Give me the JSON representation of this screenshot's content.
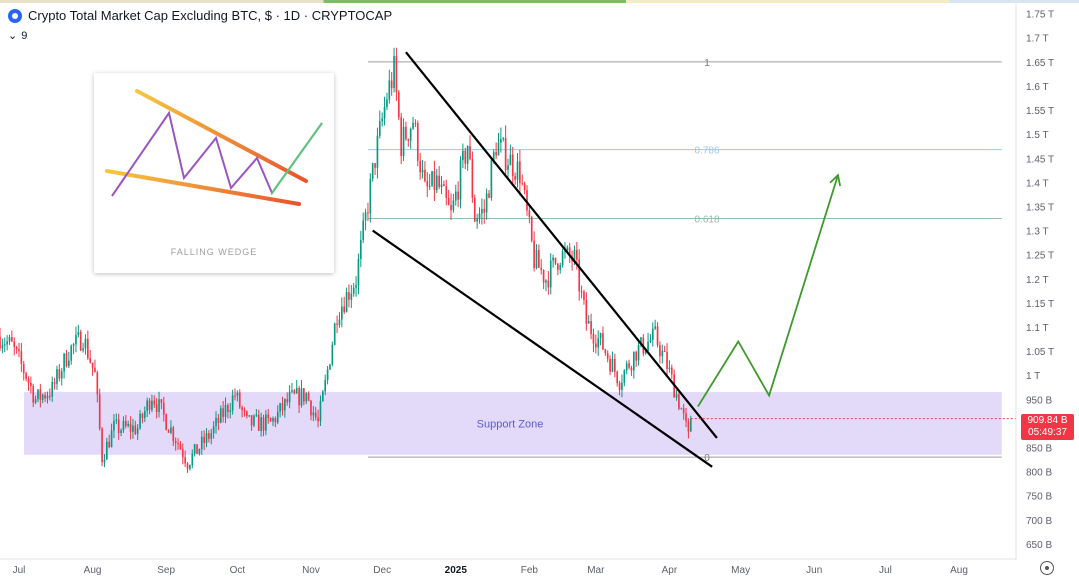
{
  "header": {
    "title": "Crypto Total Market Cap Excluding BTC, $ · 1D · CRYPTOCAP",
    "indicator_chevron": "⌄",
    "indicator_count": "9"
  },
  "inset": {
    "caption": "FALLING WEDGE"
  },
  "price_label": {
    "price": "909.84 B",
    "countdown": "05:49:37"
  },
  "colors": {
    "up": "#089981",
    "down": "#f23645",
    "support_zone": "#d9ccf7",
    "wedge": "#000000",
    "projection": "#3f9a2c",
    "price_tag": "#f23645"
  },
  "chart_data": {
    "type": "candlestick",
    "title": "Crypto Total Market Cap Excluding BTC, $ · 1D · CRYPTOCAP",
    "unit": "$",
    "y_range": [
      625000000000,
      1770000000000
    ],
    "x_range": [
      "2024-06-23",
      "2025-08-25"
    ],
    "x_ticks": [
      {
        "date": "2024-07-01",
        "label": "Jul"
      },
      {
        "date": "2024-08-01",
        "label": "Aug"
      },
      {
        "date": "2024-09-01",
        "label": "Sep"
      },
      {
        "date": "2024-10-01",
        "label": "Oct"
      },
      {
        "date": "2024-11-01",
        "label": "Nov"
      },
      {
        "date": "2024-12-01",
        "label": "Dec"
      },
      {
        "date": "2025-01-01",
        "label": "2025"
      },
      {
        "date": "2025-02-01",
        "label": "Feb"
      },
      {
        "date": "2025-03-01",
        "label": "Mar"
      },
      {
        "date": "2025-04-01",
        "label": "Apr"
      },
      {
        "date": "2025-05-01",
        "label": "May"
      },
      {
        "date": "2025-06-01",
        "label": "Jun"
      },
      {
        "date": "2025-07-01",
        "label": "Jul"
      },
      {
        "date": "2025-08-01",
        "label": "Aug"
      }
    ],
    "y_ticks": [
      {
        "value": 650000000000,
        "label": "650 B"
      },
      {
        "value": 700000000000,
        "label": "700 B"
      },
      {
        "value": 750000000000,
        "label": "750 B"
      },
      {
        "value": 800000000000,
        "label": "800 B"
      },
      {
        "value": 850000000000,
        "label": "850 B"
      },
      {
        "value": 950000000000,
        "label": "950 B"
      },
      {
        "value": 1000000000000,
        "label": "1 T"
      },
      {
        "value": 1050000000000,
        "label": "1.05 T"
      },
      {
        "value": 1100000000000,
        "label": "1.1 T"
      },
      {
        "value": 1150000000000,
        "label": "1.15 T"
      },
      {
        "value": 1200000000000,
        "label": "1.2 T"
      },
      {
        "value": 1250000000000,
        "label": "1.25 T"
      },
      {
        "value": 1300000000000,
        "label": "1.3 T"
      },
      {
        "value": 1350000000000,
        "label": "1.35 T"
      },
      {
        "value": 1400000000000,
        "label": "1.4 T"
      },
      {
        "value": 1450000000000,
        "label": "1.45 T"
      },
      {
        "value": 1500000000000,
        "label": "1.5 T"
      },
      {
        "value": 1550000000000,
        "label": "1.55 T"
      },
      {
        "value": 1600000000000,
        "label": "1.6 T"
      },
      {
        "value": 1650000000000,
        "label": "1.65 T"
      },
      {
        "value": 1700000000000,
        "label": "1.7 T"
      },
      {
        "value": 1750000000000,
        "label": "1.75 T"
      }
    ],
    "closes": [
      {
        "date": "2024-06-23",
        "value": 1080000000000
      },
      {
        "date": "2024-06-28",
        "value": 1060000000000
      },
      {
        "date": "2024-07-04",
        "value": 1000000000000
      },
      {
        "date": "2024-07-08",
        "value": 950000000000
      },
      {
        "date": "2024-07-15",
        "value": 970000000000
      },
      {
        "date": "2024-07-22",
        "value": 1050000000000
      },
      {
        "date": "2024-07-28",
        "value": 1080000000000
      },
      {
        "date": "2024-08-02",
        "value": 1000000000000
      },
      {
        "date": "2024-08-05",
        "value": 830000000000
      },
      {
        "date": "2024-08-10",
        "value": 890000000000
      },
      {
        "date": "2024-08-20",
        "value": 890000000000
      },
      {
        "date": "2024-08-26",
        "value": 960000000000
      },
      {
        "date": "2024-09-06",
        "value": 860000000000
      },
      {
        "date": "2024-09-10",
        "value": 820000000000
      },
      {
        "date": "2024-09-20",
        "value": 880000000000
      },
      {
        "date": "2024-09-30",
        "value": 960000000000
      },
      {
        "date": "2024-10-05",
        "value": 900000000000
      },
      {
        "date": "2024-10-15",
        "value": 900000000000
      },
      {
        "date": "2024-10-23",
        "value": 950000000000
      },
      {
        "date": "2024-10-30",
        "value": 960000000000
      },
      {
        "date": "2024-11-04",
        "value": 900000000000
      },
      {
        "date": "2024-11-07",
        "value": 980000000000
      },
      {
        "date": "2024-11-12",
        "value": 1130000000000
      },
      {
        "date": "2024-11-20",
        "value": 1200000000000
      },
      {
        "date": "2024-11-28",
        "value": 1450000000000
      },
      {
        "date": "2024-12-03",
        "value": 1580000000000
      },
      {
        "date": "2024-12-06",
        "value": 1630000000000
      },
      {
        "date": "2024-12-09",
        "value": 1480000000000
      },
      {
        "date": "2024-12-14",
        "value": 1530000000000
      },
      {
        "date": "2024-12-19",
        "value": 1380000000000
      },
      {
        "date": "2024-12-24",
        "value": 1400000000000
      },
      {
        "date": "2024-12-30",
        "value": 1330000000000
      },
      {
        "date": "2025-01-06",
        "value": 1480000000000
      },
      {
        "date": "2025-01-09",
        "value": 1330000000000
      },
      {
        "date": "2025-01-13",
        "value": 1340000000000
      },
      {
        "date": "2025-01-18",
        "value": 1480000000000
      },
      {
        "date": "2025-01-23",
        "value": 1450000000000
      },
      {
        "date": "2025-01-28",
        "value": 1420000000000
      },
      {
        "date": "2025-02-03",
        "value": 1240000000000
      },
      {
        "date": "2025-02-08",
        "value": 1200000000000
      },
      {
        "date": "2025-02-14",
        "value": 1250000000000
      },
      {
        "date": "2025-02-20",
        "value": 1240000000000
      },
      {
        "date": "2025-02-25",
        "value": 1110000000000
      },
      {
        "date": "2025-03-04",
        "value": 1060000000000
      },
      {
        "date": "2025-03-11",
        "value": 990000000000
      },
      {
        "date": "2025-03-18",
        "value": 1050000000000
      },
      {
        "date": "2025-03-26",
        "value": 1080000000000
      },
      {
        "date": "2025-03-31",
        "value": 1020000000000
      },
      {
        "date": "2025-04-06",
        "value": 930000000000
      },
      {
        "date": "2025-04-09",
        "value": 870000000000
      },
      {
        "date": "2025-04-10",
        "value": 909840000000
      }
    ],
    "horizontal_levels": [
      {
        "label": "1",
        "value": 1650000000000,
        "color": "#9e9e9e",
        "from": "2024-11-25",
        "to": "2025-08-19"
      },
      {
        "label": "0.786",
        "value": 1468000000000,
        "color": "#9cc7e6",
        "from": "2024-11-25",
        "to": "2025-08-19"
      },
      {
        "label": "0.618",
        "value": 1325000000000,
        "color": "#8fbfae",
        "from": "2024-11-25",
        "to": "2025-08-19"
      },
      {
        "label": "0",
        "value": 830000000000,
        "color": "#9e9e9e",
        "from": "2024-11-25",
        "to": "2025-08-19"
      }
    ],
    "support_zone": {
      "label": "Support Zone",
      "low": 835000000000,
      "high": 965000000000,
      "from": "2024-06-23",
      "to": "2025-08-19"
    },
    "wedge_lines": [
      {
        "name": "upper",
        "points": [
          {
            "date": "2024-12-11",
            "value": 1670000000000
          },
          {
            "date": "2025-04-21",
            "value": 870000000000
          }
        ]
      },
      {
        "name": "lower",
        "points": [
          {
            "date": "2024-11-27",
            "value": 1300000000000
          },
          {
            "date": "2025-04-19",
            "value": 810000000000
          }
        ]
      }
    ],
    "projection": {
      "points": [
        {
          "date": "2025-04-13",
          "value": 935000000000
        },
        {
          "date": "2025-04-30",
          "value": 1070000000000
        },
        {
          "date": "2025-05-13",
          "value": 958000000000
        },
        {
          "date": "2025-06-11",
          "value": 1415000000000
        }
      ],
      "arrow": true
    },
    "current": {
      "value": 909840000000,
      "date": "2025-04-10"
    }
  }
}
